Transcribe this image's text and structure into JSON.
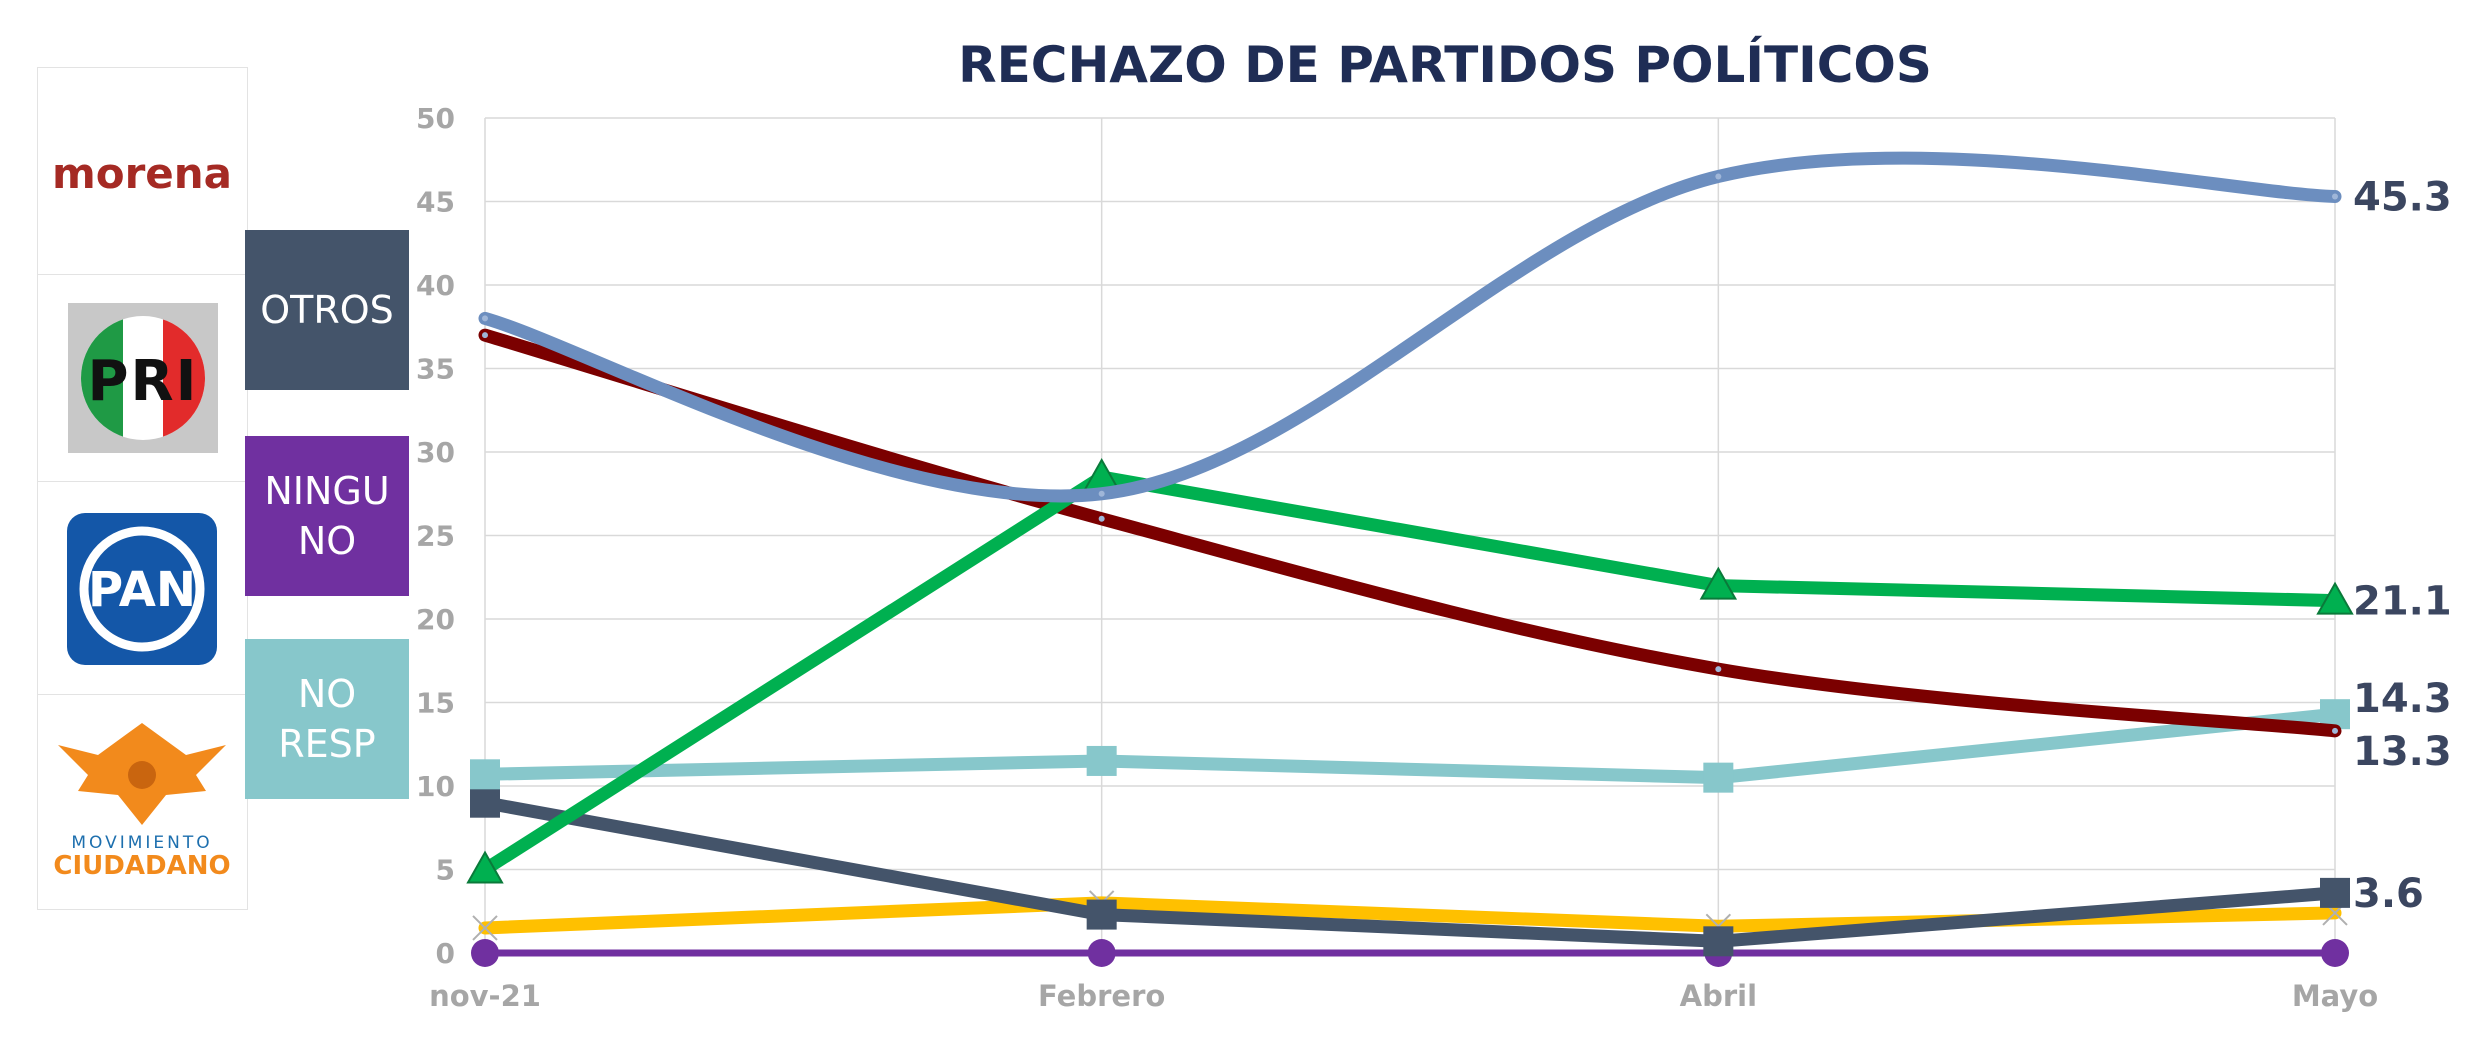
{
  "logos": {
    "morena": "morena",
    "pri": "PRI",
    "pan": "PAN",
    "mc_top": "MOVIMIENTO",
    "mc_bottom": "CIUDADANO"
  },
  "legend": [
    {
      "label": "OTROS",
      "color": "#44546a"
    },
    {
      "label": "NINGU\nNO",
      "color": "#7030a0"
    },
    {
      "label": "NO\nRESP",
      "color": "#87c7cb"
    }
  ],
  "chart_data": {
    "type": "line",
    "title": "RECHAZO DE PARTIDOS POLÍTICOS",
    "categories": [
      "nov-21",
      "Febrero",
      "Abril",
      "Mayo"
    ],
    "ylim": [
      0,
      50
    ],
    "yticks": [
      0,
      5,
      10,
      15,
      20,
      25,
      30,
      35,
      40,
      45,
      50
    ],
    "grid": true,
    "series": [
      {
        "values": [
          38,
          27.5,
          46.5,
          45.3
        ],
        "color": "#6c8ebf",
        "smooth": true,
        "marker": "none",
        "end_label": "45.3"
      },
      {
        "values": [
          37,
          26,
          17,
          13.3
        ],
        "color": "#7b0000",
        "smooth": true,
        "marker": "none",
        "end_label": "13.3"
      },
      {
        "values": [
          5,
          28.5,
          22,
          21.1
        ],
        "color": "#00b050",
        "smooth": false,
        "marker": "triangle",
        "end_label": "21.1"
      },
      {
        "values": [
          10.7,
          11.5,
          10.5,
          14.3
        ],
        "color": "#87c7cb",
        "smooth": false,
        "marker": "square",
        "end_label": "14.3"
      },
      {
        "values": [
          9,
          2.3,
          0.7,
          3.6
        ],
        "color": "#44546a",
        "smooth": false,
        "marker": "square",
        "end_label": "3.6"
      },
      {
        "values": [
          1.5,
          3,
          1.6,
          2.4
        ],
        "color": "#ffc000",
        "smooth": false,
        "marker": "x",
        "end_label": ""
      },
      {
        "values": [
          0,
          0,
          0,
          0
        ],
        "color": "#7030a0",
        "smooth": false,
        "marker": "circle",
        "end_label": ""
      }
    ]
  }
}
